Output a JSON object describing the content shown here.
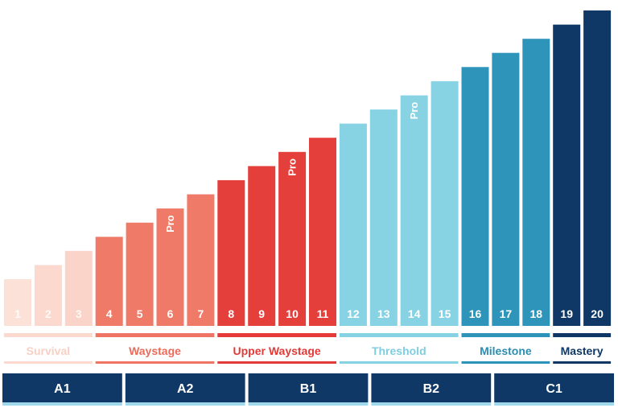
{
  "chart_data": {
    "type": "bar",
    "categories": [
      "1",
      "2",
      "3",
      "4",
      "5",
      "6",
      "7",
      "8",
      "9",
      "10",
      "11",
      "12",
      "13",
      "14",
      "15",
      "16",
      "17",
      "18",
      "19",
      "20"
    ],
    "values": [
      1,
      2,
      3,
      4,
      5,
      6,
      7,
      8,
      9,
      10,
      11,
      12,
      13,
      14,
      15,
      16,
      17,
      18,
      19,
      20
    ],
    "ylim": [
      0,
      20
    ],
    "pro_levels": [
      "6",
      "10",
      "14"
    ],
    "pro_label": "Pro",
    "stages": [
      {
        "name": "Survival",
        "from": "1",
        "to": "3",
        "color": "#fbd9cf",
        "text_color": "#f7cfc3"
      },
      {
        "name": "Waystage",
        "from": "4",
        "to": "7",
        "color": "#ef7463",
        "text_color": "#ec6b59"
      },
      {
        "name": "Upper Waystage",
        "from": "8",
        "to": "11",
        "color": "#e53a37",
        "text_color": "#e43a37"
      },
      {
        "name": "Threshold",
        "from": "12",
        "to": "15",
        "color": "#86d2e3",
        "text_color": "#7fcde0"
      },
      {
        "name": "Milestone",
        "from": "16",
        "to": "18",
        "color": "#2e93b8",
        "text_color": "#2a8db4"
      },
      {
        "name": "Mastery",
        "from": "19",
        "to": "20",
        "color": "#0e3765",
        "text_color": "#0e3765"
      }
    ],
    "cefr_levels": [
      "A1",
      "A2",
      "B1",
      "B2",
      "C1"
    ],
    "bar_colors": [
      "#fbe1d8",
      "#fbd9cf",
      "#fad4c9",
      "#ef7a68",
      "#ef7a68",
      "#ef7a68",
      "#ef7a68",
      "#e53f3c",
      "#e53f3c",
      "#e53f3c",
      "#e53f3c",
      "#87d3e4",
      "#87d3e4",
      "#87d3e4",
      "#87d3e4",
      "#2f94b9",
      "#2f94b9",
      "#2f94b9",
      "#0f3866",
      "#0f3866"
    ],
    "cefr_color": "#0f3866",
    "cefr_underline_color": "#9fd8ea"
  }
}
